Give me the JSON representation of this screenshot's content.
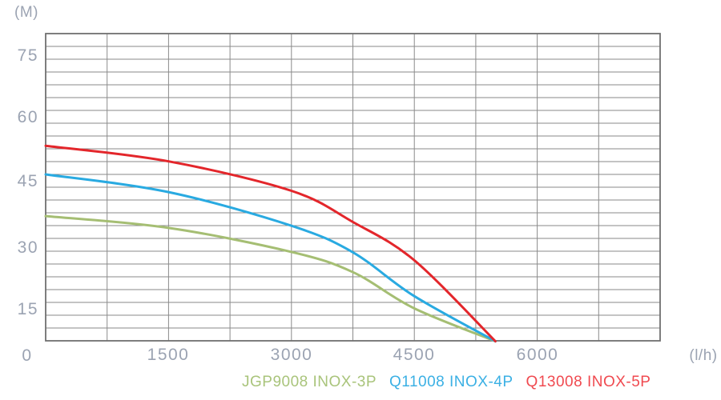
{
  "chart_data": {
    "type": "line",
    "title": "",
    "x_axis": {
      "unit_label": "(l/h)",
      "origin_label": "0",
      "tick_labels": [
        "1500",
        "3000",
        "4500",
        "6000"
      ],
      "tick_values": [
        1500,
        3000,
        4500,
        6000
      ],
      "max": 7500,
      "grid_step": 750
    },
    "y_axis": {
      "unit_label": "(M)",
      "tick_labels": [
        "75",
        "60",
        "45",
        "30",
        "15"
      ],
      "tick_values": [
        75,
        60,
        45,
        30,
        15
      ]
    },
    "grid": true,
    "legend_position": "bottom-center",
    "series": [
      {
        "name": "JGP9008 INOX-3P",
        "color": "#a5be73",
        "legend_color": "#a9c47b",
        "points": [
          [
            0,
            37.0
          ],
          [
            1500,
            34.2
          ],
          [
            3000,
            28.5
          ],
          [
            3750,
            23.7
          ],
          [
            4500,
            15.1
          ],
          [
            5490,
            7.3
          ]
        ]
      },
      {
        "name": "Q11008 INOX-4P",
        "color": "#29aae1",
        "legend_color": "#3bb0e4",
        "points": [
          [
            0,
            46.9
          ],
          [
            1500,
            42.7
          ],
          [
            3000,
            34.7
          ],
          [
            3750,
            28.4
          ],
          [
            4500,
            18.0
          ],
          [
            5490,
            7.3
          ]
        ]
      },
      {
        "name": "Q13008 INOX-5P",
        "color": "#e3262b",
        "legend_color": "#f04a50",
        "points": [
          [
            0,
            53.7
          ],
          [
            1500,
            50.0
          ],
          [
            3000,
            43.0
          ],
          [
            3750,
            35.6
          ],
          [
            4500,
            26.5
          ],
          [
            5490,
            7.3
          ]
        ]
      }
    ]
  },
  "colors": {
    "background": "#ffffff",
    "grid": "#8a8a8a",
    "border": "#707070",
    "tick_text": "#9ba3b2"
  }
}
